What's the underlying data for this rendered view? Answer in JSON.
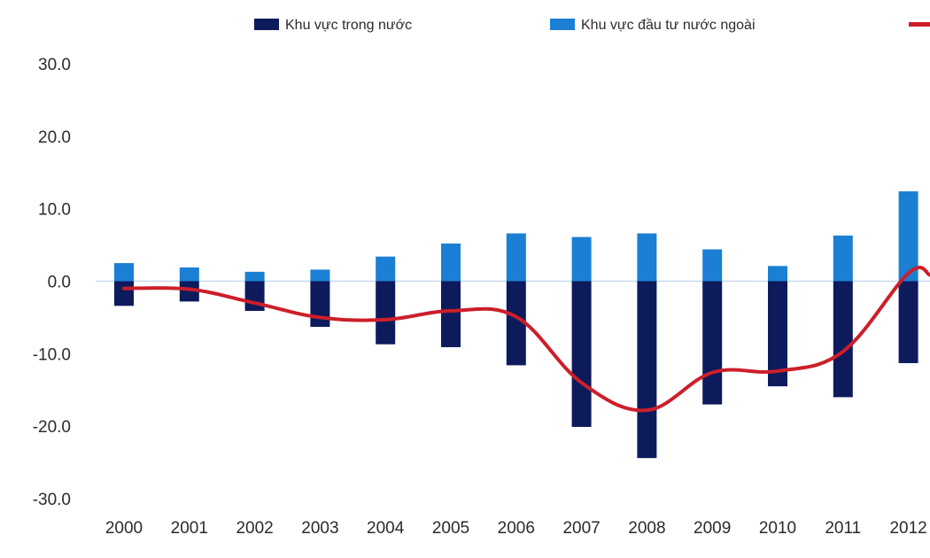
{
  "colors": {
    "domestic": "#0d1a5c",
    "foreign": "#1b7fd4",
    "line": "#cc1f2a",
    "zero_line": "#c8d8ec",
    "text": "#2b2b2b"
  },
  "chart_data": {
    "type": "bar",
    "stacked": true,
    "title": "",
    "xlabel": "",
    "ylabel": "",
    "ylim": [
      -30,
      30
    ],
    "y_ticks": [
      "30.0",
      "20.0",
      "10.0",
      "0.0",
      "-10.0",
      "-20.0",
      "-30.0"
    ],
    "y_tick_values": [
      30,
      20,
      10,
      0,
      -10,
      -20,
      -30
    ],
    "grid": false,
    "legend_position": "top",
    "categories": [
      "2000",
      "2001",
      "2002",
      "2003",
      "2004",
      "2005",
      "2006",
      "2007",
      "2008",
      "2009",
      "2010",
      "2011",
      "2012"
    ],
    "series": [
      {
        "name": "Khu vực trong nước",
        "type": "bar",
        "color_key": "domestic",
        "values": [
          -3.4,
          -2.8,
          -4.1,
          -6.3,
          -8.7,
          -9.1,
          -11.6,
          -20.1,
          -24.4,
          -17.0,
          -14.5,
          -16.0,
          -11.3
        ]
      },
      {
        "name": "Khu vực đầu tư nước ngoài",
        "type": "bar",
        "color_key": "foreign",
        "values": [
          2.5,
          1.9,
          1.3,
          1.6,
          3.4,
          5.2,
          6.6,
          6.1,
          6.6,
          4.4,
          2.1,
          6.3,
          12.4
        ]
      },
      {
        "name": "",
        "type": "line",
        "color_key": "line",
        "values": [
          -1.0,
          -1.1,
          -3.0,
          -5.0,
          -5.3,
          -4.1,
          -4.9,
          -14.0,
          -17.8,
          -12.6,
          -12.4,
          -9.7,
          1.1
        ]
      }
    ]
  }
}
